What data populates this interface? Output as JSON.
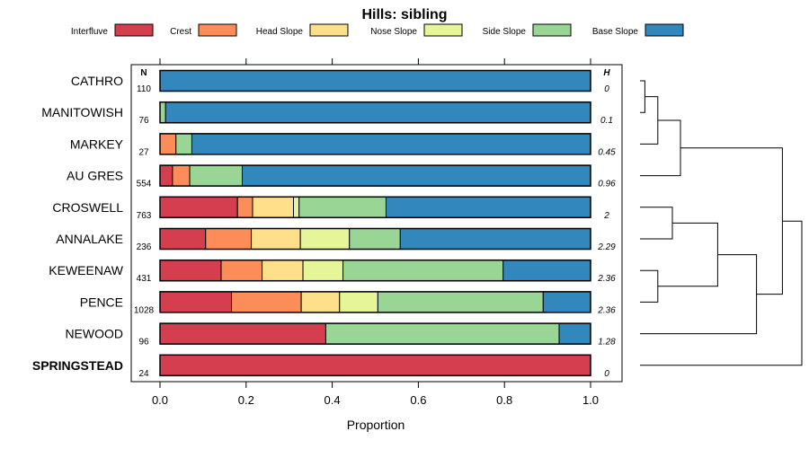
{
  "chart_data": {
    "type": "bar",
    "orientation": "horizontal",
    "stacked": true,
    "title": "Hills: sibling",
    "xlabel": "Proportion",
    "ylabel": "",
    "xlim": [
      0,
      1
    ],
    "xticks": [
      "0.0",
      "0.2",
      "0.4",
      "0.6",
      "0.8",
      "1.0"
    ],
    "n_header": "N",
    "h_header": "H",
    "series": [
      {
        "name": "Interfluve",
        "color": "#d53e4f"
      },
      {
        "name": "Crest",
        "color": "#fc8d59"
      },
      {
        "name": "Head Slope",
        "color": "#fee08b"
      },
      {
        "name": "Nose Slope",
        "color": "#e6f598"
      },
      {
        "name": "Side Slope",
        "color": "#99d594"
      },
      {
        "name": "Base Slope",
        "color": "#3288bd"
      }
    ],
    "rows": [
      {
        "label": "CATHRO",
        "n": "110",
        "h": "0",
        "bold": false,
        "values": [
          0,
          0,
          0,
          0,
          0,
          1.0
        ]
      },
      {
        "label": "MANITOWISH",
        "n": "76",
        "h": "0.1",
        "bold": false,
        "values": [
          0,
          0,
          0,
          0,
          0.013,
          0.987
        ]
      },
      {
        "label": "MARKEY",
        "n": "27",
        "h": "0.45",
        "bold": false,
        "values": [
          0,
          0.037,
          0,
          0,
          0.037,
          0.926
        ]
      },
      {
        "label": "AU GRES",
        "n": "554",
        "h": "0.96",
        "bold": false,
        "values": [
          0.029,
          0.04,
          0,
          0,
          0.122,
          0.809
        ]
      },
      {
        "label": "CROSWELL",
        "n": "763",
        "h": "2",
        "bold": false,
        "values": [
          0.18,
          0.035,
          0.095,
          0.013,
          0.202,
          0.475
        ]
      },
      {
        "label": "ANNALAKE",
        "n": "236",
        "h": "2.29",
        "bold": false,
        "values": [
          0.106,
          0.106,
          0.114,
          0.114,
          0.118,
          0.442
        ]
      },
      {
        "label": "KEWEENAW",
        "n": "431",
        "h": "2.36",
        "bold": false,
        "values": [
          0.142,
          0.095,
          0.095,
          0.093,
          0.372,
          0.203
        ]
      },
      {
        "label": "PENCE",
        "n": "1028",
        "h": "2.36",
        "bold": false,
        "values": [
          0.166,
          0.162,
          0.089,
          0.089,
          0.384,
          0.11
        ]
      },
      {
        "label": "NEWOOD",
        "n": "96",
        "h": "1.28",
        "bold": false,
        "values": [
          0.385,
          0,
          0,
          0,
          0.542,
          0.073
        ]
      },
      {
        "label": "SPRINGSTEAD",
        "n": "24",
        "h": "0",
        "bold": true,
        "values": [
          1.0,
          0,
          0,
          0,
          0,
          0
        ]
      }
    ],
    "dendrogram": {
      "merges": [
        {
          "a": 0,
          "b": 1,
          "height": 0.03
        },
        {
          "a": 10,
          "b": 2,
          "height": 0.11
        },
        {
          "a": 11,
          "b": 3,
          "height": 0.25
        },
        {
          "a": 4,
          "b": 5,
          "height": 0.2
        },
        {
          "a": 6,
          "b": 7,
          "height": 0.11
        },
        {
          "a": 13,
          "b": 14,
          "height": 0.48
        },
        {
          "a": 15,
          "b": 8,
          "height": 0.72
        },
        {
          "a": 12,
          "b": 16,
          "height": 0.88
        },
        {
          "a": 17,
          "b": 9,
          "height": 1.0
        }
      ]
    }
  }
}
